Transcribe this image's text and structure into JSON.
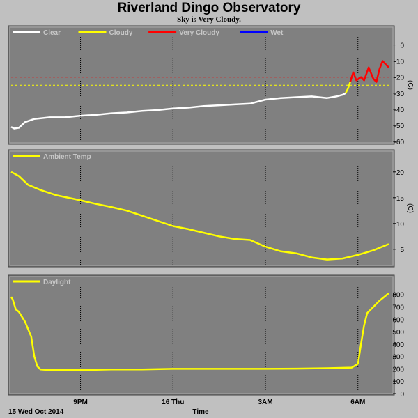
{
  "header": {
    "title": "Riverland Dingo Observatory",
    "subtitle": "Sky is Very Cloudy."
  },
  "colors": {
    "panel_bg": "#808080",
    "frame": "#c0c0c0",
    "grid": "#000000",
    "clear": "#ffffff",
    "cloudy": "#ffff00",
    "very_cloudy": "#ff0000",
    "wet": "#0000ff",
    "ambient": "#ffff00",
    "daylight": "#ffff00"
  },
  "footer": {
    "date_label": "15 Wed Oct 2014",
    "axis_title": "Time"
  },
  "chart_data": [
    {
      "id": "sky",
      "type": "line",
      "legend": [
        "Clear",
        "Cloudy",
        "Very Cloudy",
        "Wet"
      ],
      "yunit": "(C)",
      "ylim": [
        -60,
        5
      ],
      "yticks": [
        0,
        -10,
        -20,
        -30,
        -40,
        -50,
        -60
      ],
      "x_ticks": [
        "9PM",
        "16 Thu",
        "3AM",
        "6AM"
      ],
      "x_tick_hours": [
        21,
        24,
        27,
        30
      ],
      "xlim_hours": [
        18.75,
        31.0
      ],
      "thresholds": [
        {
          "value": -20,
          "color": "#ff0000"
        },
        {
          "value": -25,
          "color": "#ffff00"
        }
      ],
      "series": [
        {
          "name": "Clear",
          "x": [
            18.75,
            18.85,
            19.0,
            19.2,
            19.5,
            20.0,
            20.5,
            21.0,
            21.5,
            22.0,
            22.5,
            23.0,
            23.5,
            24.0,
            24.5,
            25.0,
            25.5,
            26.0,
            26.5,
            27.0,
            27.5,
            28.0,
            28.5,
            29.0,
            29.3,
            29.5,
            29.6
          ],
          "y": [
            -51,
            -52,
            -51.5,
            -48,
            -46,
            -45,
            -45,
            -44,
            -43.5,
            -42.5,
            -42,
            -41,
            -40.5,
            -39.5,
            -39,
            -38,
            -37.5,
            -37,
            -36.5,
            -34,
            -33,
            -32.5,
            -32,
            -33,
            -32,
            -31,
            -30
          ]
        },
        {
          "name": "Cloudy",
          "x": [
            29.6,
            29.68,
            29.75
          ],
          "y": [
            -30,
            -27,
            -23
          ]
        },
        {
          "name": "Very Cloudy",
          "x": [
            29.75,
            29.85,
            29.95,
            30.1,
            30.2,
            30.35,
            30.5,
            30.6,
            30.7,
            30.8,
            30.9,
            31.0
          ],
          "y": [
            -23,
            -17,
            -22,
            -20,
            -22,
            -14,
            -21,
            -23,
            -15,
            -10,
            -12,
            -14
          ]
        },
        {
          "name": "Wet",
          "x": [],
          "y": []
        }
      ]
    },
    {
      "id": "ambient",
      "type": "line",
      "legend": [
        "Ambient Temp"
      ],
      "yunit": "(C)",
      "ylim": [
        2,
        22
      ],
      "yticks": [
        20,
        15,
        10,
        5
      ],
      "x_ticks": [
        "9PM",
        "16 Thu",
        "3AM",
        "6AM"
      ],
      "x_tick_hours": [
        21,
        24,
        27,
        30
      ],
      "xlim_hours": [
        18.75,
        31.0
      ],
      "series": [
        {
          "name": "Ambient Temp",
          "x": [
            18.75,
            19.0,
            19.3,
            19.7,
            20.2,
            21.0,
            21.5,
            22.0,
            22.5,
            23.0,
            23.5,
            24.0,
            24.5,
            25.0,
            25.5,
            26.0,
            26.5,
            27.0,
            27.5,
            28.0,
            28.5,
            29.0,
            29.5,
            30.0,
            30.5,
            31.0
          ],
          "y": [
            20,
            19.2,
            17.5,
            16.5,
            15.5,
            14.5,
            13.8,
            13.2,
            12.5,
            11.5,
            10.5,
            9.5,
            8.9,
            8.2,
            7.5,
            7.0,
            6.8,
            5.5,
            4.6,
            4.2,
            3.4,
            3.0,
            3.2,
            3.9,
            4.8,
            6.0
          ]
        }
      ]
    },
    {
      "id": "daylight",
      "type": "line",
      "legend": [
        "Daylight"
      ],
      "ylim": [
        0,
        860
      ],
      "yticks": [
        800,
        700,
        600,
        500,
        400,
        300,
        200,
        100,
        0
      ],
      "x_ticks": [
        "9PM",
        "16 Thu",
        "3AM",
        "6AM"
      ],
      "x_tick_hours": [
        21,
        24,
        27,
        30
      ],
      "xlim_hours": [
        18.75,
        31.0
      ],
      "series": [
        {
          "name": "Daylight",
          "x": [
            18.75,
            18.8,
            18.9,
            19.0,
            19.2,
            19.4,
            19.5,
            19.6,
            19.7,
            20.0,
            21.0,
            22.0,
            23.0,
            24.0,
            25.0,
            26.0,
            27.0,
            28.0,
            29.0,
            29.8,
            30.0,
            30.1,
            30.2,
            30.3,
            30.5,
            30.7,
            30.9,
            31.0
          ],
          "y": [
            780,
            760,
            680,
            660,
            580,
            460,
            300,
            220,
            195,
            190,
            190,
            195,
            195,
            200,
            200,
            200,
            200,
            202,
            205,
            210,
            240,
            400,
            550,
            650,
            700,
            750,
            790,
            810
          ]
        }
      ]
    }
  ]
}
